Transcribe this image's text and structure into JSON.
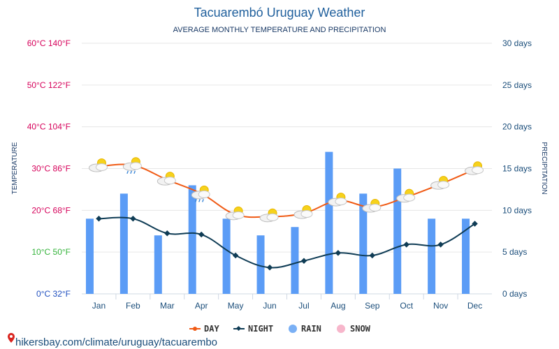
{
  "page": {
    "title": "Tacuarembó Uruguay Weather",
    "subtitle": "AVERAGE MONTHLY TEMPERATURE AND PRECIPITATION",
    "watermark": "hikersbay.com/climate/uruguay/tacuarembo"
  },
  "chart_data": {
    "type": "line",
    "title": "Tacuarembó Uruguay Weather",
    "subtitle": "AVERAGE MONTHLY TEMPERATURE AND PRECIPITATION",
    "categories": [
      "Jan",
      "Feb",
      "Mar",
      "Apr",
      "May",
      "Jun",
      "Jul",
      "Aug",
      "Sep",
      "Oct",
      "Nov",
      "Dec"
    ],
    "y_left": {
      "label": "TEMPERATURE",
      "unit": "°C",
      "range": [
        0,
        60
      ],
      "ticks": [
        {
          "value": 0,
          "label": "0°C 32°F",
          "color": "#1f4fbf"
        },
        {
          "value": 10,
          "label": "10°C 50°F",
          "color": "#33b33a"
        },
        {
          "value": 20,
          "label": "20°C 68°F",
          "color": "#d6005a"
        },
        {
          "value": 30,
          "label": "30°C 86°F",
          "color": "#d6005a"
        },
        {
          "value": 40,
          "label": "40°C 104°F",
          "color": "#d6005a"
        },
        {
          "value": 50,
          "label": "50°C 122°F",
          "color": "#d6005a"
        },
        {
          "value": 60,
          "label": "60°C 140°F",
          "color": "#d6005a"
        }
      ]
    },
    "y_right": {
      "label": "PRECIPITATION",
      "unit": "days",
      "range": [
        0,
        30
      ],
      "ticks": [
        {
          "value": 0,
          "label": "0 days"
        },
        {
          "value": 5,
          "label": "5 days"
        },
        {
          "value": 10,
          "label": "10 days"
        },
        {
          "value": 15,
          "label": "15 days"
        },
        {
          "value": 20,
          "label": "20 days"
        },
        {
          "value": 25,
          "label": "25 days"
        },
        {
          "value": 30,
          "label": "30 days"
        }
      ]
    },
    "series": [
      {
        "name": "DAY",
        "type": "line",
        "axis": "left",
        "color": "#f05a14",
        "values": [
          30.5,
          30.8,
          27.3,
          24.0,
          19.0,
          18.5,
          19.3,
          22.3,
          20.8,
          23.2,
          26.3,
          29.8
        ]
      },
      {
        "name": "NIGHT",
        "type": "line",
        "axis": "left",
        "color": "#0f3c55",
        "values": [
          18.0,
          18.0,
          14.5,
          14.2,
          9.2,
          6.3,
          7.9,
          9.8,
          9.2,
          11.8,
          11.8,
          16.8
        ]
      },
      {
        "name": "RAIN",
        "type": "bar",
        "axis": "right",
        "color": "#5b9cf6",
        "values": [
          9,
          12,
          7,
          13,
          9,
          7,
          8,
          17,
          12,
          15,
          9,
          9
        ]
      },
      {
        "name": "SNOW",
        "type": "bar",
        "axis": "right",
        "color": "#f7b6cb",
        "values": [
          0,
          0,
          0,
          0,
          0,
          0,
          0,
          0,
          0,
          0,
          0,
          0
        ]
      }
    ],
    "weather_icons": [
      "partly-sunny-icon",
      "sun-rain-cloud-icon",
      "partly-sunny-icon",
      "sun-rain-cloud-icon",
      "partly-sunny-icon",
      "partly-sunny-icon",
      "partly-sunny-icon",
      "partly-sunny-icon",
      "partly-sunny-icon",
      "partly-sunny-icon",
      "partly-sunny-icon",
      "partly-sunny-icon"
    ],
    "grid": true,
    "legend": {
      "position": "bottom-center",
      "items": [
        {
          "label": "DAY",
          "marker": "line-dot"
        },
        {
          "label": "NIGHT",
          "marker": "line-diamond"
        },
        {
          "label": "RAIN",
          "marker": "circle"
        },
        {
          "label": "SNOW",
          "marker": "circle"
        }
      ]
    }
  }
}
